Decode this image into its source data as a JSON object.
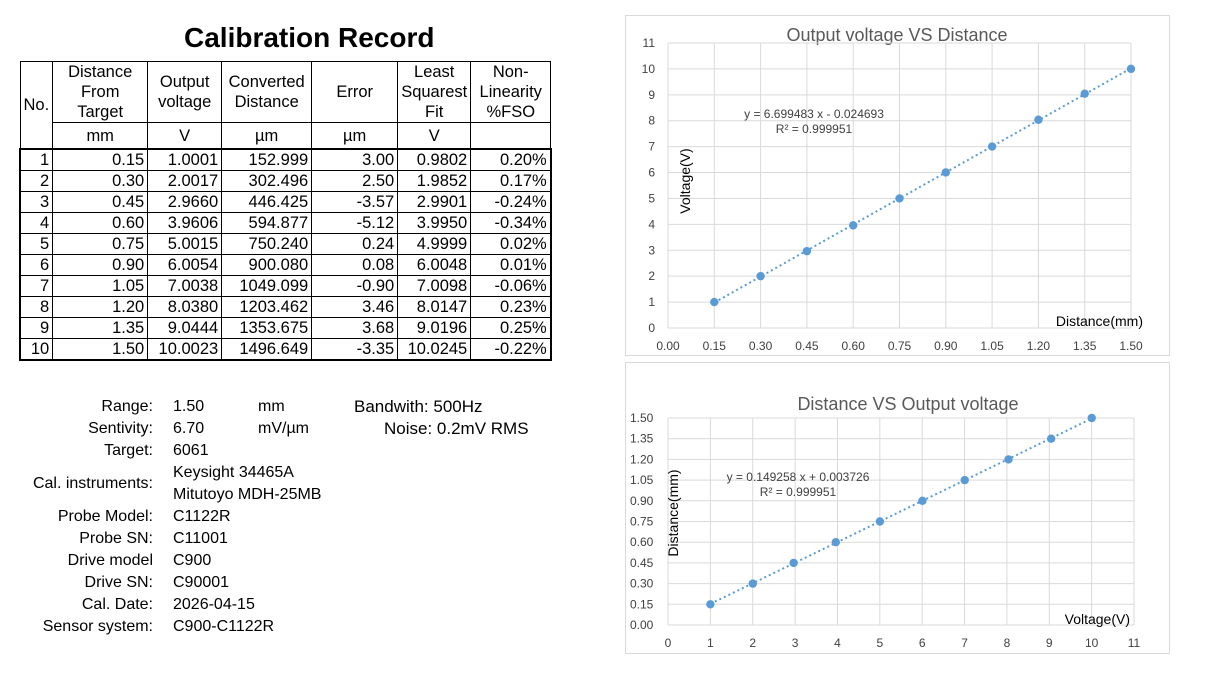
{
  "title": "Calibration Record",
  "table": {
    "headers": [
      "No.",
      "Distance From Target",
      "Output voltage",
      "Converted Distance",
      "Error",
      "Least Squarest Fit",
      "Non-Linearity %FSO"
    ],
    "header_lines": [
      [
        "No."
      ],
      [
        "Distance",
        "From",
        "Target"
      ],
      [
        "Output",
        "voltage"
      ],
      [
        "Converted",
        "Distance"
      ],
      [
        "Error"
      ],
      [
        "Least",
        "Squarest",
        "Fit"
      ],
      [
        "Non-",
        "Linearity",
        "%FSO"
      ]
    ],
    "units": [
      "",
      "mm",
      "V",
      "µm",
      "µm",
      "V",
      ""
    ],
    "rows": [
      [
        "1",
        "0.15",
        "1.0001",
        "152.999",
        "3.00",
        "0.9802",
        "0.20%"
      ],
      [
        "2",
        "0.30",
        "2.0017",
        "302.496",
        "2.50",
        "1.9852",
        "0.17%"
      ],
      [
        "3",
        "0.45",
        "2.9660",
        "446.425",
        "-3.57",
        "2.9901",
        "-0.24%"
      ],
      [
        "4",
        "0.60",
        "3.9606",
        "594.877",
        "-5.12",
        "3.9950",
        "-0.34%"
      ],
      [
        "5",
        "0.75",
        "5.0015",
        "750.240",
        "0.24",
        "4.9999",
        "0.02%"
      ],
      [
        "6",
        "0.90",
        "6.0054",
        "900.080",
        "0.08",
        "6.0048",
        "0.01%"
      ],
      [
        "7",
        "1.05",
        "7.0038",
        "1049.099",
        "-0.90",
        "7.0098",
        "-0.06%"
      ],
      [
        "8",
        "1.20",
        "8.0380",
        "1203.462",
        "3.46",
        "8.0147",
        "0.23%"
      ],
      [
        "9",
        "1.35",
        "9.0444",
        "1353.675",
        "3.68",
        "9.0196",
        "0.25%"
      ],
      [
        "10",
        "1.50",
        "10.0023",
        "1496.649",
        "-3.35",
        "10.0245",
        "-0.22%"
      ]
    ]
  },
  "info": {
    "range_label": "Range:",
    "range_value": "1.50",
    "range_unit": "mm",
    "sensitivity_label": "Sentivity:",
    "sensitivity_value": "6.70",
    "sensitivity_unit": "mV/µm",
    "target_label": "Target:",
    "target_value": "6061",
    "instruments_label": "Cal. instruments:",
    "instrument_1": "Keysight 34465A",
    "instrument_2": "Mitutoyo MDH-25MB",
    "probe_model_label": "Probe Model:",
    "probe_model_value": "C1122R",
    "probe_sn_label": "Probe SN:",
    "probe_sn_value": "C11001",
    "drive_model_label": "Drive model",
    "drive_model_value": "C900",
    "drive_sn_label": "Drive SN:",
    "drive_sn_value": "C90001",
    "cal_date_label": "Cal. Date:",
    "cal_date_value": "2026-04-15",
    "sensor_system_label": "Sensor system:",
    "sensor_system_value": "C900-C1122R",
    "bandwidth": "Bandwith: 500Hz",
    "noise": "Noise: 0.2mV RMS"
  },
  "chart_data": [
    {
      "type": "scatter",
      "title": "Output voltage VS Distance",
      "xlabel": "Distance(mm)",
      "ylabel": "Voltage(V)",
      "xlim": [
        0,
        1.5
      ],
      "ylim": [
        0,
        11
      ],
      "xticks": [
        "0.00",
        "0.15",
        "0.30",
        "0.45",
        "0.60",
        "0.75",
        "0.90",
        "1.05",
        "1.20",
        "1.35",
        "1.50"
      ],
      "yticks": [
        "0",
        "1",
        "2",
        "3",
        "4",
        "5",
        "6",
        "7",
        "8",
        "9",
        "10",
        "11"
      ],
      "grid": true,
      "trendline": "linear dotted",
      "equation": "y = 6.699483 x - 0.024693",
      "r_squared": "R² = 0.999951",
      "color": "#5b9bd5",
      "x": [
        0.15,
        0.3,
        0.45,
        0.6,
        0.75,
        0.9,
        1.05,
        1.2,
        1.35,
        1.5
      ],
      "y": [
        1.0001,
        2.0017,
        2.966,
        3.9606,
        5.0015,
        6.0054,
        7.0038,
        8.038,
        9.0444,
        10.0023
      ],
      "trend_x": [
        0.15,
        1.5
      ],
      "trend_y": [
        0.9802,
        10.0245
      ]
    },
    {
      "type": "scatter",
      "title": "Distance VS Output voltage",
      "xlabel": "Voltage(V)",
      "ylabel": "Distance(mm)",
      "xlim": [
        0,
        11
      ],
      "ylim": [
        0,
        1.5
      ],
      "xticks": [
        "0",
        "1",
        "2",
        "3",
        "4",
        "5",
        "6",
        "7",
        "8",
        "9",
        "10",
        "11"
      ],
      "yticks": [
        "0.00",
        "0.15",
        "0.30",
        "0.45",
        "0.60",
        "0.75",
        "0.90",
        "1.05",
        "1.20",
        "1.35",
        "1.50"
      ],
      "grid": true,
      "trendline": "linear dotted",
      "equation": "y = 0.149258 x + 0.003726",
      "r_squared": "R² = 0.999951",
      "color": "#5b9bd5",
      "x": [
        1.0001,
        2.0017,
        2.966,
        3.9606,
        5.0015,
        6.0054,
        7.0038,
        8.038,
        9.0444,
        10.0023
      ],
      "y": [
        0.15,
        0.3,
        0.45,
        0.6,
        0.75,
        0.9,
        1.05,
        1.2,
        1.35,
        1.5
      ],
      "trend_x": [
        1.0001,
        10.0023
      ],
      "trend_y": [
        0.153,
        1.4966
      ]
    }
  ]
}
